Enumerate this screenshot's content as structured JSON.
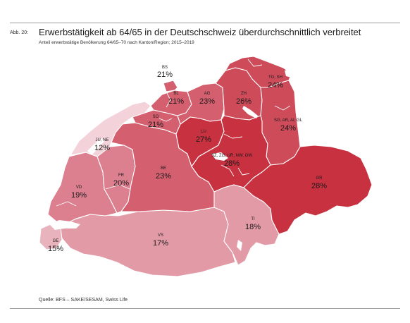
{
  "figure": {
    "label": "Abb. 20:",
    "title": "Erwerbstätigkeit ab 64/65 in der Deutschschweiz überdurchschnittlich verbreitet",
    "subtitle": "Anteil erwerbstätige Bevölkerung 64/65–70 nach Kanton/Region; 2015–2019",
    "source": "Quelle: BFS – SAKE/SESAM, Swiss Life"
  },
  "legend_colors": {
    "12": "#f3d3d9",
    "15": "#e8b3bd",
    "17_18": "#e39aa7",
    "19_20": "#dc7f8f",
    "21_23": "#d4606f",
    "24_26": "#ce4b5a",
    "27_28": "#c83140"
  },
  "regions": [
    {
      "id": "bs",
      "name": "BS",
      "value": "21%"
    },
    {
      "id": "bl",
      "name": "BL",
      "value": "21%"
    },
    {
      "id": "ag",
      "name": "AG",
      "value": "23%"
    },
    {
      "id": "zh",
      "name": "ZH",
      "value": "26%"
    },
    {
      "id": "tgsh",
      "name": "TG, SH",
      "value": "24%"
    },
    {
      "id": "so",
      "name": "SO",
      "value": "21%"
    },
    {
      "id": "june",
      "name": "JU, NE",
      "value": "12%"
    },
    {
      "id": "lu",
      "name": "LU",
      "value": "27%"
    },
    {
      "id": "sgai",
      "name": "SG, AR, AI, GL",
      "value": "24%"
    },
    {
      "id": "sz",
      "name": "SZ, ZG, UR, NW, OW",
      "value": "28%"
    },
    {
      "id": "be",
      "name": "BE",
      "value": "23%"
    },
    {
      "id": "fr",
      "name": "FR",
      "value": "20%"
    },
    {
      "id": "vd",
      "name": "VD",
      "value": "19%"
    },
    {
      "id": "gr",
      "name": "GR",
      "value": "28%"
    },
    {
      "id": "ti",
      "name": "TI",
      "value": "18%"
    },
    {
      "id": "vs",
      "name": "VS",
      "value": "17%"
    },
    {
      "id": "ge",
      "name": "GE",
      "value": "15%"
    }
  ]
}
